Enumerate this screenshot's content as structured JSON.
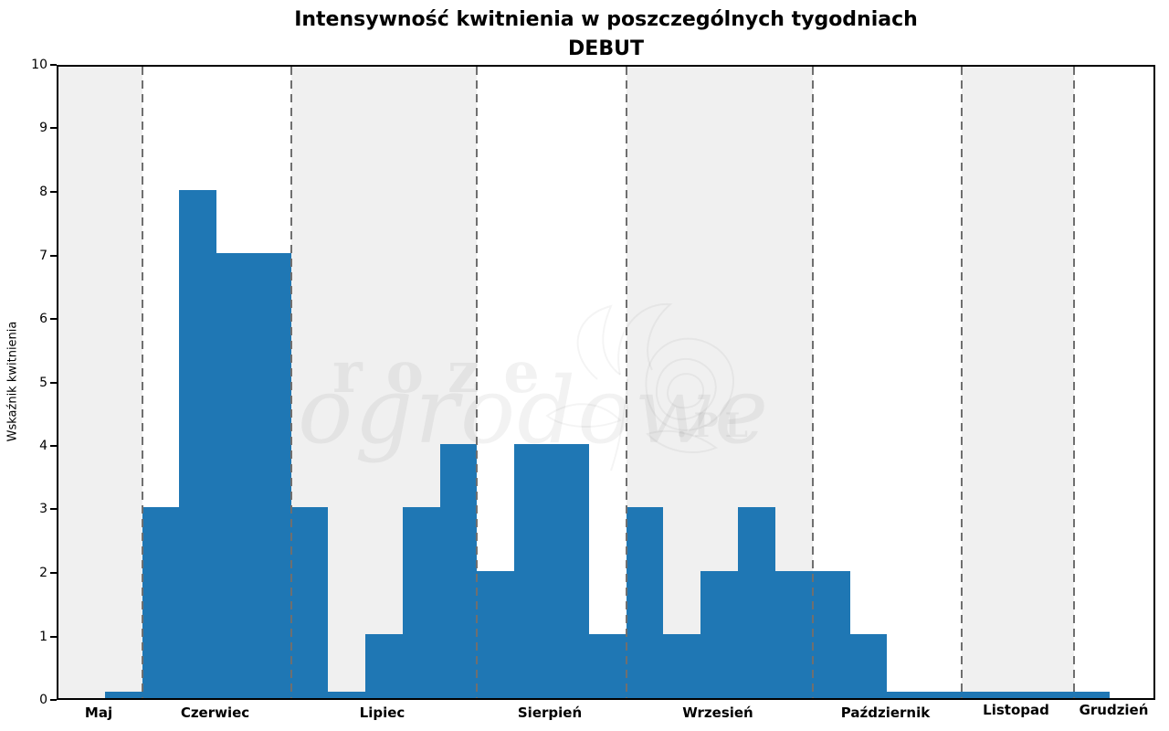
{
  "title": {
    "line1": "Intensywność kwitnienia w poszczególnych tygodniach",
    "line2": "DEBUT"
  },
  "watermark": {
    "word1": "roze",
    "word2": "ogrodowe",
    "suffix": ".PL"
  },
  "chart_data": {
    "type": "bar",
    "title": "Intensywność kwitnienia w poszczególnych tygodniach",
    "subtitle": "DEBUT",
    "xlabel": "",
    "ylabel": "Wskaźnik kwitnienia",
    "ylim": [
      0,
      10
    ],
    "yticks": [
      0,
      1,
      2,
      3,
      4,
      5,
      6,
      7,
      8,
      9,
      10
    ],
    "grid": "vertical dashed month separators",
    "legend": "none",
    "bar_color": "#1f77b4",
    "band_shaded_color": "#f0f0f0",
    "band_plain_color": "#ffffff",
    "separator_color": "#6f6f6f",
    "categories": [
      "Maj",
      "Czerwiec",
      "Lipiec",
      "Sierpień",
      "Wrzesień",
      "Październik",
      "Listopad",
      "Grudzień"
    ],
    "weekly_values": [
      0.1,
      3,
      8,
      7,
      7,
      3,
      0.1,
      1,
      3,
      4,
      2,
      4,
      4,
      1,
      3,
      1,
      2,
      3,
      2,
      2,
      1,
      0.1,
      0.1,
      0.1,
      0.1,
      0.1,
      0.1
    ],
    "months": [
      {
        "label": "Maj",
        "x0": 62,
        "x1": 154,
        "shaded": true
      },
      {
        "label": "Czerwiec",
        "x0": 154,
        "x1": 317,
        "shaded": false
      },
      {
        "label": "Lipiec",
        "x0": 317,
        "x1": 520,
        "shaded": true
      },
      {
        "label": "Sierpień",
        "x0": 520,
        "x1": 684,
        "shaded": false
      },
      {
        "label": "Wrzesień",
        "x0": 684,
        "x1": 888,
        "shaded": true
      },
      {
        "label": "Październik",
        "x0": 888,
        "x1": 1051,
        "shaded": false
      },
      {
        "label": "Listopad",
        "x0": 1051,
        "x1": 1174,
        "shaded": true
      },
      {
        "label": "Grudzień",
        "x0": 1174,
        "x1": 1265,
        "shaded": false
      }
    ],
    "weeks": [
      {
        "month": "Maj",
        "value": 0.1,
        "x0": 113,
        "x1": 154
      },
      {
        "month": "Czerwiec",
        "value": 3,
        "x0": 154,
        "x1": 194
      },
      {
        "month": "Czerwiec",
        "value": 8,
        "x0": 194,
        "x1": 235
      },
      {
        "month": "Czerwiec",
        "value": 7,
        "x0": 235,
        "x1": 276
      },
      {
        "month": "Czerwiec",
        "value": 7,
        "x0": 276,
        "x1": 317
      },
      {
        "month": "Lipiec",
        "value": 3,
        "x0": 317,
        "x1": 357
      },
      {
        "month": "Lipiec",
        "value": 0.1,
        "x0": 357,
        "x1": 398
      },
      {
        "month": "Lipiec",
        "value": 1,
        "x0": 398,
        "x1": 439
      },
      {
        "month": "Lipiec",
        "value": 3,
        "x0": 439,
        "x1": 480
      },
      {
        "month": "Lipiec",
        "value": 4,
        "x0": 480,
        "x1": 520
      },
      {
        "month": "Sierpień",
        "value": 2,
        "x0": 520,
        "x1": 561
      },
      {
        "month": "Sierpień",
        "value": 4,
        "x0": 561,
        "x1": 602
      },
      {
        "month": "Sierpień",
        "value": 4,
        "x0": 602,
        "x1": 643
      },
      {
        "month": "Sierpień",
        "value": 1,
        "x0": 643,
        "x1": 684
      },
      {
        "month": "Wrzesień",
        "value": 3,
        "x0": 684,
        "x1": 724
      },
      {
        "month": "Wrzesień",
        "value": 1,
        "x0": 724,
        "x1": 765
      },
      {
        "month": "Wrzesień",
        "value": 2,
        "x0": 765,
        "x1": 806
      },
      {
        "month": "Wrzesień",
        "value": 3,
        "x0": 806,
        "x1": 847
      },
      {
        "month": "Wrzesień",
        "value": 2,
        "x0": 847,
        "x1": 888
      },
      {
        "month": "Październik",
        "value": 2,
        "x0": 888,
        "x1": 929
      },
      {
        "month": "Październik",
        "value": 1,
        "x0": 929,
        "x1": 969
      },
      {
        "month": "Październik",
        "value": 0.1,
        "x0": 969,
        "x1": 1010
      },
      {
        "month": "Październik",
        "value": 0.1,
        "x0": 1010,
        "x1": 1051
      },
      {
        "month": "Listopad",
        "value": 0.1,
        "x0": 1051,
        "x1": 1092
      },
      {
        "month": "Listopad",
        "value": 0.1,
        "x0": 1092,
        "x1": 1132
      },
      {
        "month": "Listopad",
        "value": 0.1,
        "x0": 1132,
        "x1": 1173
      },
      {
        "month": "Grudzień",
        "value": 0.1,
        "x0": 1173,
        "x1": 1213
      }
    ]
  }
}
